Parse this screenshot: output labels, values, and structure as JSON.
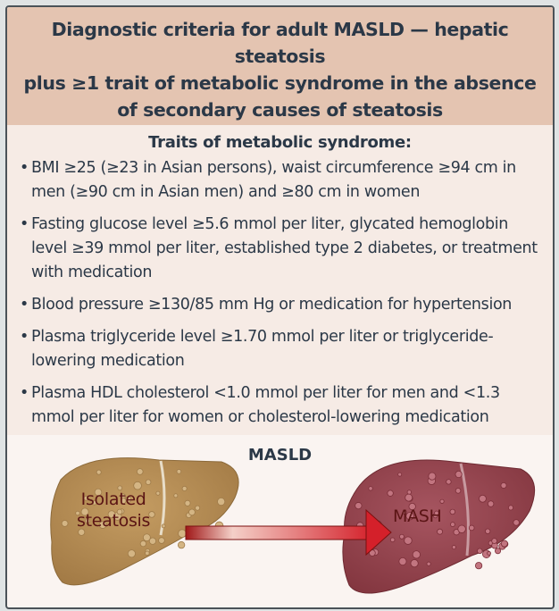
{
  "header": {
    "title_lines": [
      "Diagnostic criteria for adult MASLD — hepatic steatosis",
      "plus ≥1 trait of metabolic syndrome in the absence",
      "of secondary causes of steatosis"
    ]
  },
  "traits": {
    "heading": "Traits of metabolic syndrome:",
    "bullet": "•",
    "items": [
      "BMI ≥25 (≥23 in Asian persons), waist circumference ≥94 cm in men (≥90 cm in Asian men) and ≥80 cm in women",
      "Fasting glucose level ≥5.6 mmol per liter, glycated hemoglobin level ≥39 mmol per liter, established type 2 diabetes, or treatment with medication",
      "Blood pressure ≥130/85 mm Hg or medication for hypertension",
      "Plasma triglyceride level ≥1.70 mmol per liter or triglyceride-lowering medication",
      "Plasma HDL cholesterol <1.0 mmol per liter for men and <1.3 mmol per liter for women or cholesterol-lowering medication"
    ]
  },
  "illustration": {
    "title": "MASLD",
    "left_label_lines": [
      "Isolated",
      "steatosis"
    ],
    "right_label": "MASH",
    "colors": {
      "steatosis_liver": "#b88e55",
      "mash_liver": "#9b4a55",
      "arrow": "#d4202a"
    }
  }
}
